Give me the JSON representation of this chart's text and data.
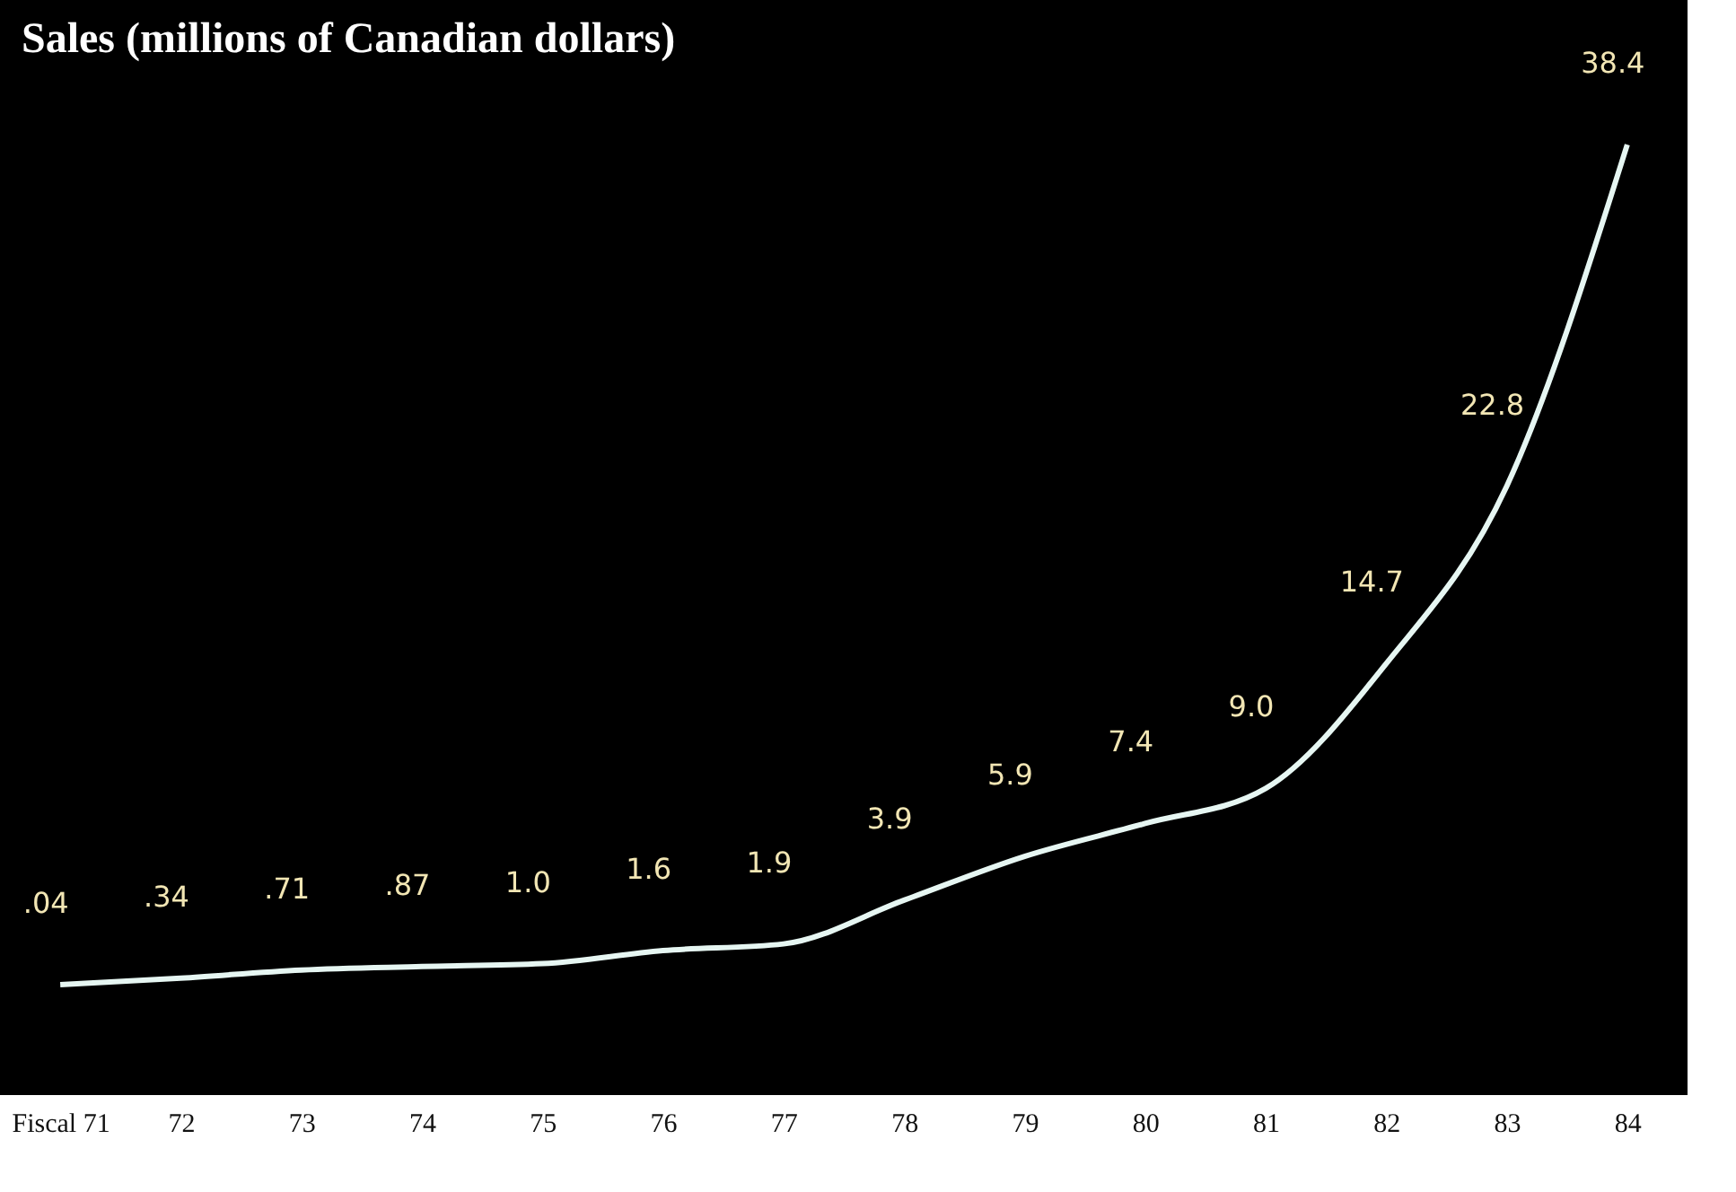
{
  "chart_data": {
    "type": "line",
    "title": "Sales (millions of Canadian dollars)",
    "categories": [
      "Fiscal 71",
      "72",
      "73",
      "74",
      "75",
      "76",
      "77",
      "78",
      "79",
      "80",
      "81",
      "82",
      "83",
      "84"
    ],
    "values": [
      0.04,
      0.34,
      0.71,
      0.87,
      1.0,
      1.6,
      1.9,
      3.9,
      5.9,
      7.4,
      9.0,
      14.7,
      22.8,
      38.4
    ],
    "value_labels": [
      ".04",
      ".34",
      ".71",
      ".87",
      "1.0",
      "1.6",
      "1.9",
      "3.9",
      "5.9",
      "7.4",
      "9.0",
      "14.7",
      "22.8",
      "38.4"
    ],
    "color": "#e6f6f2"
  }
}
